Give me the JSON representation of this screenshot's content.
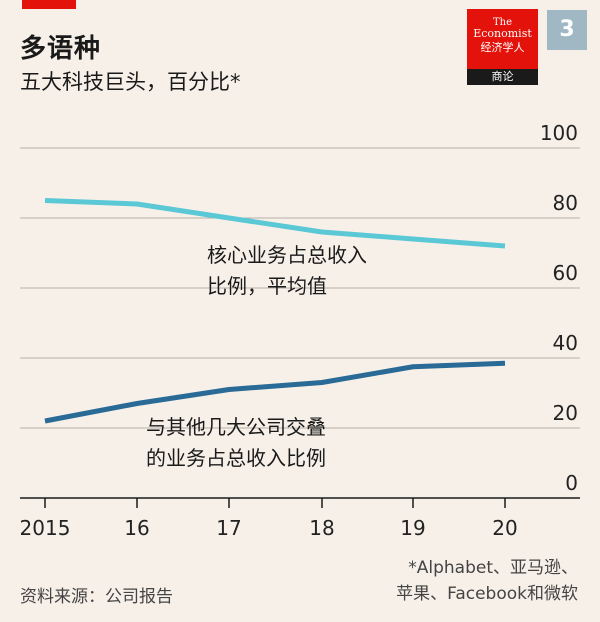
{
  "header": {
    "title": "多语种",
    "subtitle": "五大科技巨头，百分比*",
    "badge": "3"
  },
  "logo": {
    "line1": "The",
    "line2": "Economist",
    "line3": "经济学人",
    "bar": "商论"
  },
  "chart_data": {
    "type": "line",
    "x": [
      "2015",
      "16",
      "17",
      "18",
      "19",
      "20"
    ],
    "ylim": [
      0,
      100
    ],
    "yticks": [
      "100",
      "80",
      "60",
      "40",
      "20",
      "0"
    ],
    "series": [
      {
        "annotation": [
          "核心业务占总收入",
          "比例，平均值"
        ],
        "color": "#5bc8d5",
        "values": [
          85,
          84,
          80,
          76,
          74,
          72
        ]
      },
      {
        "annotation": [
          "与其他几大公司交叠",
          "的业务占总收入比例"
        ],
        "color": "#2a6a96",
        "values": [
          22,
          27,
          31,
          33,
          37.5,
          38.5
        ]
      }
    ],
    "grid": true,
    "yaxis_position": "right"
  },
  "footer": {
    "footnote_line1": "*Alphabet、亚马逊、",
    "footnote_line2": "苹果、Facebook和微软",
    "source": "资料来源：公司报告"
  }
}
